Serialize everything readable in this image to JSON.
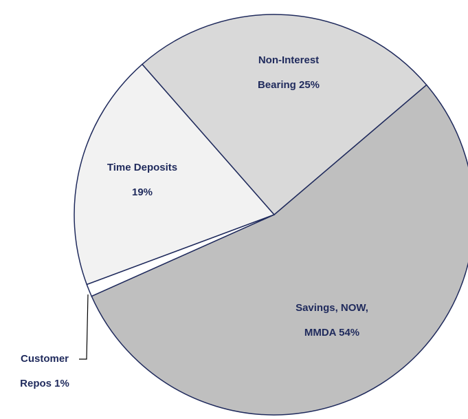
{
  "chart_data": {
    "type": "pie",
    "labels": [
      [
        "Savings, NOW,",
        "MMDA 54%"
      ],
      [
        "Customer",
        "Repos 1%"
      ],
      [
        "Time Deposits",
        "19%"
      ],
      [
        "Non-Interest",
        "Bearing 25%"
      ]
    ],
    "values": [
      54,
      1,
      19,
      25
    ],
    "colors": [
      "#bfbfbf",
      "#ffffff",
      "#f2f2f2",
      "#d9d9d9"
    ]
  }
}
